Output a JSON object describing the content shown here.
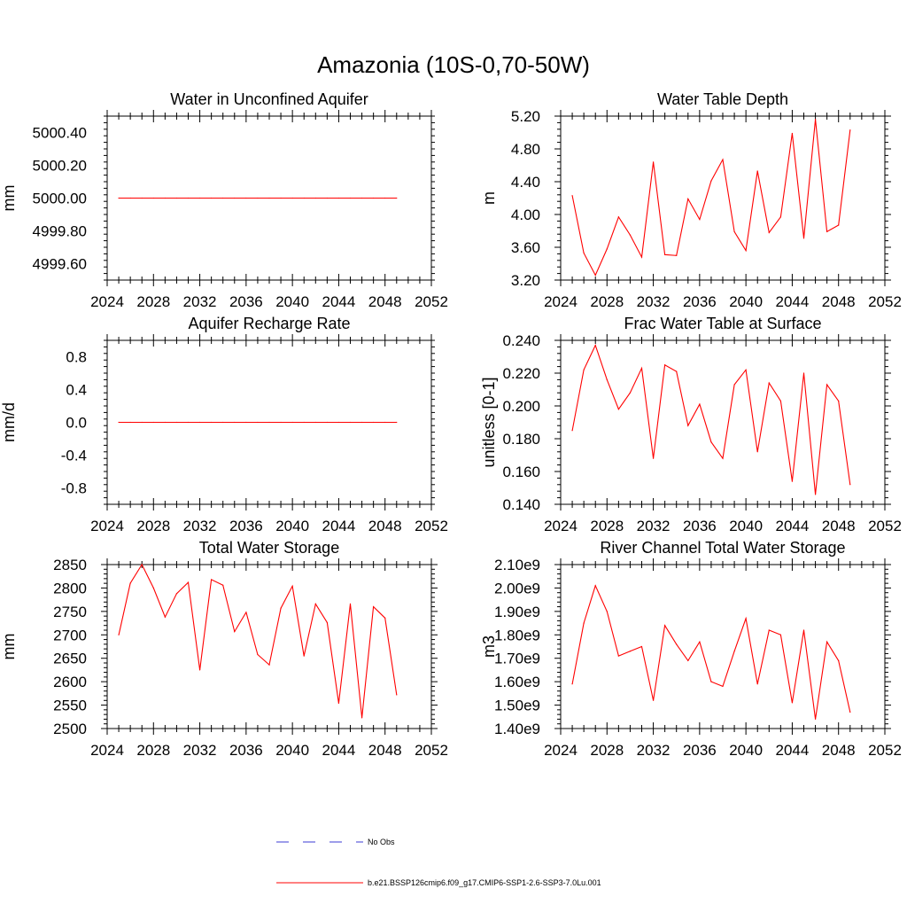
{
  "title": "Amazonia (10S-0,70-50W)",
  "legend": {
    "obs_label": "No Obs",
    "model_label": "b.e21.BSSP126cmip6.f09_g17.CMIP6-SSP1-2.6-SSP3-7.0Lu.001",
    "obs_color": "#3b3bd6",
    "model_color": "#ff0000"
  },
  "chart_data": [
    {
      "type": "line",
      "title": "Water in Unconfined Aquifer",
      "ylabel": "mm",
      "xlim": [
        2024,
        2052
      ],
      "ylim": [
        4999.5,
        5000.5
      ],
      "x_ticks": [
        "2024",
        "2028",
        "2032",
        "2036",
        "2040",
        "2044",
        "2048",
        "2052"
      ],
      "y_ticks": [
        "4999.60",
        "4999.80",
        "5000.00",
        "5000.20",
        "5000.40"
      ],
      "x": [
        2025,
        2026,
        2027,
        2028,
        2029,
        2030,
        2031,
        2032,
        2033,
        2034,
        2035,
        2036,
        2037,
        2038,
        2039,
        2040,
        2041,
        2042,
        2043,
        2044,
        2045,
        2046,
        2047,
        2048,
        2049
      ],
      "values": [
        5000,
        5000,
        5000,
        5000,
        5000,
        5000,
        5000,
        5000,
        5000,
        5000,
        5000,
        5000,
        5000,
        5000,
        5000,
        5000,
        5000,
        5000,
        5000,
        5000,
        5000,
        5000,
        5000,
        5000,
        5000
      ]
    },
    {
      "type": "line",
      "title": "Water Table Depth",
      "ylabel": "m",
      "xlim": [
        2024,
        2052
      ],
      "ylim": [
        3.2,
        5.2
      ],
      "x_ticks": [
        "2024",
        "2028",
        "2032",
        "2036",
        "2040",
        "2044",
        "2048",
        "2052"
      ],
      "y_ticks": [
        "3.20",
        "3.60",
        "4.00",
        "4.40",
        "4.80",
        "5.20"
      ],
      "x": [
        2025,
        2026,
        2027,
        2028,
        2029,
        2030,
        2031,
        2032,
        2033,
        2034,
        2035,
        2036,
        2037,
        2038,
        2039,
        2040,
        2041,
        2042,
        2043,
        2044,
        2045,
        2046,
        2047,
        2048,
        2049
      ],
      "values": [
        4.23,
        3.53,
        3.26,
        3.58,
        3.97,
        3.75,
        3.48,
        4.64,
        3.51,
        3.5,
        4.19,
        3.94,
        4.41,
        4.67,
        3.79,
        3.56,
        4.53,
        3.78,
        3.97,
        4.99,
        3.71,
        5.16,
        3.79,
        3.87,
        5.03
      ]
    },
    {
      "type": "line",
      "title": "Aquifer Recharge Rate",
      "ylabel": "mm/d",
      "xlim": [
        2024,
        2052
      ],
      "ylim": [
        -1.0,
        1.0
      ],
      "x_ticks": [
        "2024",
        "2028",
        "2032",
        "2036",
        "2040",
        "2044",
        "2048",
        "2052"
      ],
      "y_ticks": [
        "-0.8",
        "-0.4",
        "0.0",
        "0.4",
        "0.8"
      ],
      "x": [
        2025,
        2026,
        2027,
        2028,
        2029,
        2030,
        2031,
        2032,
        2033,
        2034,
        2035,
        2036,
        2037,
        2038,
        2039,
        2040,
        2041,
        2042,
        2043,
        2044,
        2045,
        2046,
        2047,
        2048,
        2049
      ],
      "values": [
        0,
        0,
        0,
        0,
        0,
        0,
        0,
        0,
        0,
        0,
        0,
        0,
        0,
        0,
        0,
        0,
        0,
        0,
        0,
        0,
        0,
        0,
        0,
        0,
        0
      ]
    },
    {
      "type": "line",
      "title": "Frac Water Table at Surface",
      "ylabel": "unitless [0-1]",
      "xlim": [
        2024,
        2052
      ],
      "ylim": [
        0.14,
        0.24
      ],
      "x_ticks": [
        "2024",
        "2028",
        "2032",
        "2036",
        "2040",
        "2044",
        "2048",
        "2052"
      ],
      "y_ticks": [
        "0.140",
        "0.160",
        "0.180",
        "0.200",
        "0.220",
        "0.240"
      ],
      "x": [
        2025,
        2026,
        2027,
        2028,
        2029,
        2030,
        2031,
        2032,
        2033,
        2034,
        2035,
        2036,
        2037,
        2038,
        2039,
        2040,
        2041,
        2042,
        2043,
        2044,
        2045,
        2046,
        2047,
        2048,
        2049
      ],
      "values": [
        0.185,
        0.222,
        0.237,
        0.216,
        0.198,
        0.208,
        0.223,
        0.168,
        0.225,
        0.221,
        0.188,
        0.201,
        0.178,
        0.168,
        0.213,
        0.222,
        0.172,
        0.214,
        0.203,
        0.154,
        0.22,
        0.146,
        0.213,
        0.203,
        0.152
      ]
    },
    {
      "type": "line",
      "title": "Total Water Storage",
      "ylabel": "mm",
      "xlim": [
        2024,
        2052
      ],
      "ylim": [
        2500,
        2850
      ],
      "x_ticks": [
        "2024",
        "2028",
        "2032",
        "2036",
        "2040",
        "2044",
        "2048",
        "2052"
      ],
      "y_ticks": [
        "2500",
        "2550",
        "2600",
        "2650",
        "2700",
        "2750",
        "2800",
        "2850"
      ],
      "x": [
        2025,
        2026,
        2027,
        2028,
        2029,
        2030,
        2031,
        2032,
        2033,
        2034,
        2035,
        2036,
        2037,
        2038,
        2039,
        2040,
        2041,
        2042,
        2043,
        2044,
        2045,
        2046,
        2047,
        2048,
        2049
      ],
      "values": [
        2700,
        2810,
        2850,
        2800,
        2738,
        2788,
        2812,
        2625,
        2818,
        2806,
        2707,
        2748,
        2658,
        2636,
        2757,
        2804,
        2655,
        2766,
        2726,
        2554,
        2766,
        2523,
        2760,
        2736,
        2572
      ]
    },
    {
      "type": "line",
      "title": "River Channel Total Water Storage",
      "ylabel": "m3",
      "xlim": [
        2024,
        2052
      ],
      "ylim": [
        1.4,
        2.1
      ],
      "x_ticks": [
        "2024",
        "2028",
        "2032",
        "2036",
        "2040",
        "2044",
        "2048",
        "2052"
      ],
      "y_ticks": [
        "1.40e9",
        "1.50e9",
        "1.60e9",
        "1.70e9",
        "1.80e9",
        "1.90e9",
        "2.00e9",
        "2.10e9"
      ],
      "x": [
        2025,
        2026,
        2027,
        2028,
        2029,
        2030,
        2031,
        2032,
        2033,
        2034,
        2035,
        2036,
        2037,
        2038,
        2039,
        2040,
        2041,
        2042,
        2043,
        2044,
        2045,
        2046,
        2047,
        2048,
        2049
      ],
      "values": [
        1.59,
        1.85,
        2.01,
        1.9,
        1.71,
        1.73,
        1.75,
        1.52,
        1.84,
        1.76,
        1.69,
        1.77,
        1.6,
        1.58,
        1.73,
        1.87,
        1.59,
        1.82,
        1.8,
        1.51,
        1.82,
        1.44,
        1.77,
        1.69,
        1.47
      ]
    }
  ]
}
